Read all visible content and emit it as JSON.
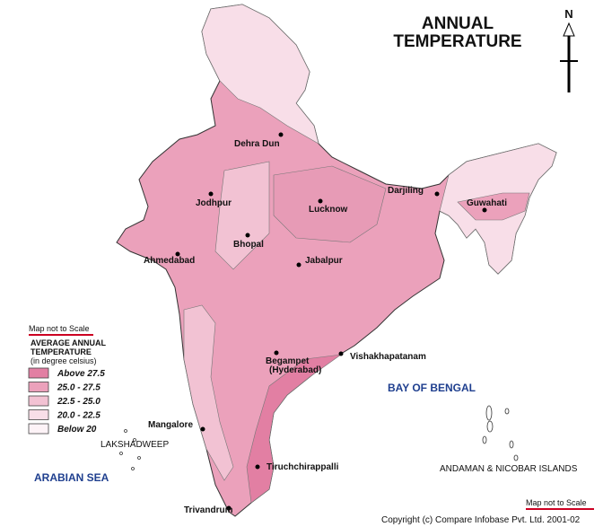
{
  "title": [
    "ANNUAL",
    "TEMPERATURE"
  ],
  "north": "N",
  "legend": {
    "note": "Map not to Scale",
    "heading": [
      "AVERAGE ANNUAL",
      "TEMPERATURE"
    ],
    "unit": "(in degree celsius)",
    "items": [
      {
        "label": "Above 27.5",
        "color": "#e27fa3"
      },
      {
        "label": "25.0 - 27.5",
        "color": "#eba1bb"
      },
      {
        "label": "22.5 - 25.0",
        "color": "#f2c2d3"
      },
      {
        "label": "20.0 - 22.5",
        "color": "#f8dee8"
      },
      {
        "label": "Below 20",
        "color": "#fdf3f7"
      }
    ]
  },
  "cities": [
    {
      "name": [
        "Dehra Dun"
      ]
    },
    {
      "name": [
        "Jodhpur"
      ]
    },
    {
      "name": [
        "Lucknow"
      ]
    },
    {
      "name": [
        "Darjiling"
      ]
    },
    {
      "name": [
        "Guwahati"
      ]
    },
    {
      "name": [
        "Bhopal"
      ]
    },
    {
      "name": [
        "Ahmedabad"
      ]
    },
    {
      "name": [
        "Jabalpur"
      ]
    },
    {
      "name": [
        "Begampet",
        "(Hyderabad)"
      ]
    },
    {
      "name": [
        "Vishakhapatanam"
      ]
    },
    {
      "name": [
        "Mangalore"
      ]
    },
    {
      "name": [
        "Tiruchchirappalli"
      ]
    },
    {
      "name": [
        "Trivandrum"
      ]
    }
  ],
  "places": [
    "LAKSHADWEEP",
    "ANDAMAN & NICOBAR ISLANDS"
  ],
  "seas": [
    "ARABIAN SEA",
    "BAY OF BENGAL"
  ],
  "scale_note": "Map not to Scale",
  "copyright": "Copyright (c) Compare Infobase Pvt. Ltd. 2001-02"
}
